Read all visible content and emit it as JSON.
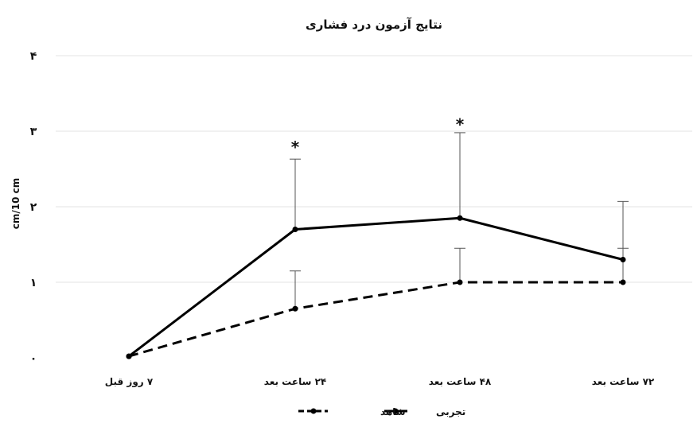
{
  "chart_data": {
    "type": "line",
    "title": "نتایج آزمون درد فشاری",
    "xlabel": "",
    "ylabel": "cm/10 cm",
    "ylim": [
      0,
      4
    ],
    "y_ticks": [
      {
        "value": 0,
        "label": "۰"
      },
      {
        "value": 1,
        "label": "۱"
      },
      {
        "value": 2,
        "label": "۲"
      },
      {
        "value": 3,
        "label": "۳"
      },
      {
        "value": 4,
        "label": "۴"
      }
    ],
    "categories": [
      "۷ روز قبل",
      "۲۴ ساعت بعد",
      "۴۸ ساعت بعد",
      "۷۲ ساعت بعد"
    ],
    "grid": true,
    "legend_position": "bottom",
    "series": [
      {
        "name": "تجربی",
        "style": "solid",
        "color": "#000000",
        "values": [
          0.02,
          1.7,
          1.85,
          1.3
        ],
        "error": [
          0,
          0.93,
          1.13,
          0.77
        ]
      },
      {
        "name": "شاهد",
        "style": "dashed",
        "color": "#000000",
        "values": [
          0.02,
          0.65,
          1.0,
          1.0
        ],
        "error": [
          0,
          0.5,
          0.45,
          0.45
        ]
      }
    ],
    "annotations": [
      {
        "category_index": 1,
        "y": 2.8,
        "text": "*"
      },
      {
        "category_index": 2,
        "y": 3.1,
        "text": "*"
      }
    ]
  }
}
